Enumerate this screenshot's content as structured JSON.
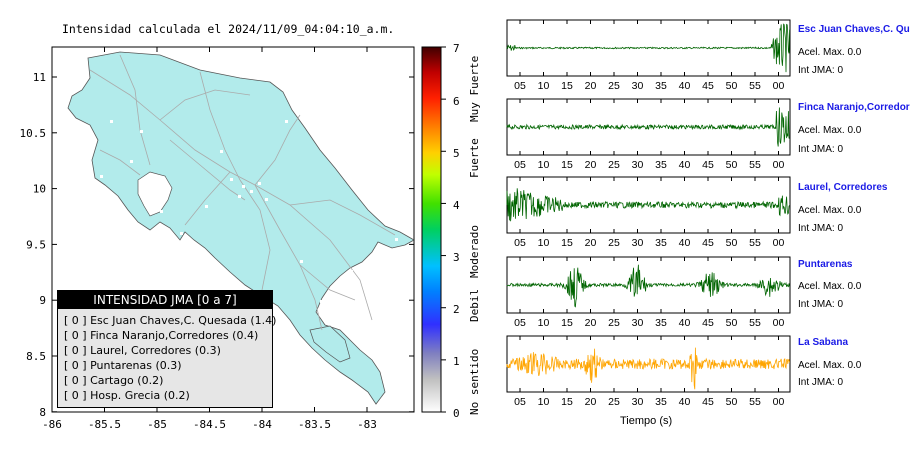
{
  "title": "Intensidad calculada el 2024/11/09_04:04:10_a.m.",
  "map": {
    "x_ticks": [
      "-86",
      "-85.5",
      "-85",
      "-84.5",
      "-84",
      "-83.5",
      "-83"
    ],
    "y_ticks": [
      "11",
      "10.5",
      "10",
      "9.5",
      "9",
      "8.5",
      "8"
    ],
    "land_color": "#b2ebeb",
    "road_color": "#aaaaaa"
  },
  "legend": {
    "header": "INTENSIDAD JMA [0 a 7]",
    "items": [
      "[ 0 ]  Esc Juan Chaves,C. Quesada (1.4)",
      "[ 0 ]  Finca Naranjo,Corredores (0.4)",
      "[ 0 ]  Laurel, Corredores (0.3)",
      "[ 0 ]  Puntarenas (0.3)",
      "[ 0 ]  Cartago (0.2)",
      "[ 0 ]  Hosp. Grecia (0.2)"
    ]
  },
  "colorbar": {
    "ticks": [
      "7",
      "6",
      "5",
      "4",
      "3",
      "2",
      "1",
      "0"
    ],
    "categories": [
      "Muy Fuerte",
      "Fuerte",
      "Moderado",
      "Debil",
      "No sentido"
    ]
  },
  "chart_data": {
    "type": "line",
    "xlabel": "Tiempo (s)",
    "x_ticks": [
      "05",
      "10",
      "15",
      "20",
      "25",
      "30",
      "35",
      "40",
      "45",
      "50",
      "55",
      "00"
    ],
    "series": [
      {
        "name": "Esc Juan Chaves,C. Qu",
        "accel_label": "Acel. Max. 0.0",
        "jma_label": "Int JMA: 0",
        "color": "#006400"
      },
      {
        "name": "Finca Naranjo,Corredor",
        "accel_label": "Acel. Max. 0.0",
        "jma_label": "Int JMA: 0",
        "color": "#006400"
      },
      {
        "name": "Laurel, Corredores",
        "accel_label": "Acel. Max. 0.0",
        "jma_label": "Int JMA: 0",
        "color": "#006400"
      },
      {
        "name": "Puntarenas",
        "accel_label": "Acel. Max. 0.0",
        "jma_label": "Int JMA: 0",
        "color": "#006400"
      },
      {
        "name": "La Sabana",
        "accel_label": "Acel. Max. 0.0",
        "jma_label": "Int JMA: 0",
        "color": "#ffa500"
      }
    ]
  }
}
